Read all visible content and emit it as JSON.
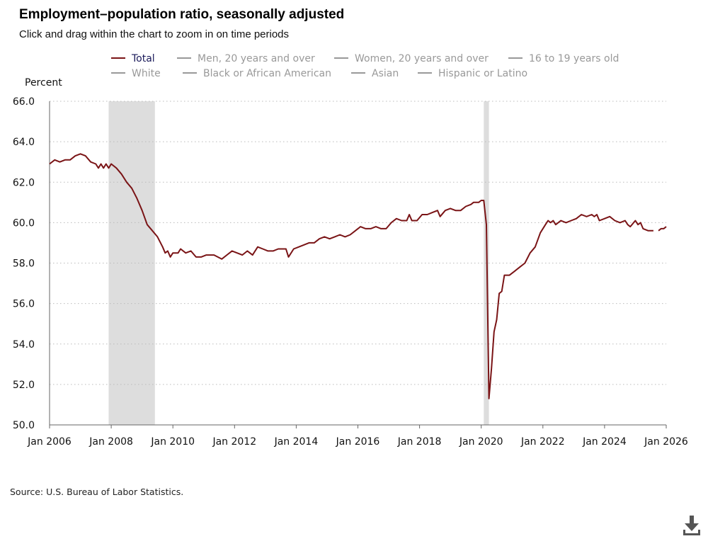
{
  "header": {
    "title": "Employment–population ratio, seasonally adjusted",
    "subtitle": "Click and drag within the chart to zoom in on time periods"
  },
  "footer": {
    "source": "Source: U.S. Bureau of Labor Statistics."
  },
  "toolbar": {
    "download_icon": "download-icon"
  },
  "colors": {
    "series_total": "#7a1416",
    "legend_inactive": "#999999",
    "legend_active_text": "#1a1a5a",
    "recession_shade": "#dddddd",
    "grid": "#bbbbbb"
  },
  "chart_data": {
    "type": "line",
    "title": "Employment–population ratio, seasonally adjusted",
    "ylabel": "Percent",
    "xlabel": "",
    "ylim": [
      50,
      66
    ],
    "xlim": [
      "2006-01",
      "2026-01"
    ],
    "y_ticks": [
      "50.0",
      "52.0",
      "54.0",
      "56.0",
      "58.0",
      "60.0",
      "62.0",
      "64.0",
      "66.0"
    ],
    "x_ticks": [
      "Jan 2006",
      "Jan 2008",
      "Jan 2010",
      "Jan 2012",
      "Jan 2014",
      "Jan 2016",
      "Jan 2018",
      "Jan 2020",
      "Jan 2022",
      "Jan 2024",
      "Jan 2026"
    ],
    "grid": "horizontal-dotted",
    "legend_placement": "top",
    "legend": [
      {
        "name": "Total",
        "active": true
      },
      {
        "name": "Men, 20 years and over",
        "active": false
      },
      {
        "name": "Women, 20 years and over",
        "active": false
      },
      {
        "name": "16 to 19 years old",
        "active": false
      },
      {
        "name": "White",
        "active": false
      },
      {
        "name": "Black or African American",
        "active": false
      },
      {
        "name": "Asian",
        "active": false
      },
      {
        "name": "Hispanic or Latino",
        "active": false
      }
    ],
    "recessions": [
      {
        "start": "2007-12",
        "end": "2009-06"
      },
      {
        "start": "2020-02",
        "end": "2020-04"
      }
    ],
    "series": [
      {
        "name": "Total",
        "points": [
          [
            "2006-01",
            62.9
          ],
          [
            "2006-03",
            63.1
          ],
          [
            "2006-05",
            63.0
          ],
          [
            "2006-07",
            63.1
          ],
          [
            "2006-09",
            63.1
          ],
          [
            "2006-11",
            63.3
          ],
          [
            "2007-01",
            63.4
          ],
          [
            "2007-03",
            63.3
          ],
          [
            "2007-05",
            63.0
          ],
          [
            "2007-07",
            62.9
          ],
          [
            "2007-08",
            62.7
          ],
          [
            "2007-09",
            62.9
          ],
          [
            "2007-10",
            62.7
          ],
          [
            "2007-11",
            62.9
          ],
          [
            "2007-12",
            62.7
          ],
          [
            "2008-01",
            62.9
          ],
          [
            "2008-03",
            62.7
          ],
          [
            "2008-05",
            62.4
          ],
          [
            "2008-07",
            62.0
          ],
          [
            "2008-09",
            61.7
          ],
          [
            "2008-11",
            61.2
          ],
          [
            "2009-01",
            60.6
          ],
          [
            "2009-03",
            59.9
          ],
          [
            "2009-05",
            59.6
          ],
          [
            "2009-07",
            59.3
          ],
          [
            "2009-09",
            58.8
          ],
          [
            "2009-10",
            58.5
          ],
          [
            "2009-11",
            58.6
          ],
          [
            "2009-12",
            58.3
          ],
          [
            "2010-01",
            58.5
          ],
          [
            "2010-03",
            58.5
          ],
          [
            "2010-04",
            58.7
          ],
          [
            "2010-06",
            58.5
          ],
          [
            "2010-08",
            58.6
          ],
          [
            "2010-10",
            58.3
          ],
          [
            "2010-12",
            58.3
          ],
          [
            "2011-02",
            58.4
          ],
          [
            "2011-05",
            58.4
          ],
          [
            "2011-08",
            58.2
          ],
          [
            "2011-10",
            58.4
          ],
          [
            "2011-12",
            58.6
          ],
          [
            "2012-02",
            58.5
          ],
          [
            "2012-04",
            58.4
          ],
          [
            "2012-06",
            58.6
          ],
          [
            "2012-08",
            58.4
          ],
          [
            "2012-10",
            58.8
          ],
          [
            "2012-12",
            58.7
          ],
          [
            "2013-02",
            58.6
          ],
          [
            "2013-04",
            58.6
          ],
          [
            "2013-06",
            58.7
          ],
          [
            "2013-09",
            58.7
          ],
          [
            "2013-10",
            58.3
          ],
          [
            "2013-12",
            58.7
          ],
          [
            "2014-02",
            58.8
          ],
          [
            "2014-04",
            58.9
          ],
          [
            "2014-06",
            59.0
          ],
          [
            "2014-08",
            59.0
          ],
          [
            "2014-10",
            59.2
          ],
          [
            "2014-12",
            59.3
          ],
          [
            "2015-02",
            59.2
          ],
          [
            "2015-04",
            59.3
          ],
          [
            "2015-06",
            59.4
          ],
          [
            "2015-08",
            59.3
          ],
          [
            "2015-10",
            59.4
          ],
          [
            "2015-12",
            59.6
          ],
          [
            "2016-02",
            59.8
          ],
          [
            "2016-04",
            59.7
          ],
          [
            "2016-06",
            59.7
          ],
          [
            "2016-08",
            59.8
          ],
          [
            "2016-10",
            59.7
          ],
          [
            "2016-12",
            59.7
          ],
          [
            "2017-02",
            60.0
          ],
          [
            "2017-04",
            60.2
          ],
          [
            "2017-06",
            60.1
          ],
          [
            "2017-08",
            60.1
          ],
          [
            "2017-09",
            60.4
          ],
          [
            "2017-10",
            60.1
          ],
          [
            "2017-12",
            60.1
          ],
          [
            "2018-02",
            60.4
          ],
          [
            "2018-04",
            60.4
          ],
          [
            "2018-06",
            60.5
          ],
          [
            "2018-08",
            60.6
          ],
          [
            "2018-09",
            60.3
          ],
          [
            "2018-11",
            60.6
          ],
          [
            "2019-01",
            60.7
          ],
          [
            "2019-03",
            60.6
          ],
          [
            "2019-05",
            60.6
          ],
          [
            "2019-07",
            60.8
          ],
          [
            "2019-09",
            60.9
          ],
          [
            "2019-10",
            61.0
          ],
          [
            "2019-12",
            61.0
          ],
          [
            "2020-01",
            61.1
          ],
          [
            "2020-02",
            61.1
          ],
          [
            "2020-03",
            59.9
          ],
          [
            "2020-04",
            51.3
          ],
          [
            "2020-05",
            52.8
          ],
          [
            "2020-06",
            54.6
          ],
          [
            "2020-07",
            55.2
          ],
          [
            "2020-08",
            56.5
          ],
          [
            "2020-09",
            56.6
          ],
          [
            "2020-10",
            57.4
          ],
          [
            "2020-12",
            57.4
          ],
          [
            "2021-02",
            57.6
          ],
          [
            "2021-04",
            57.8
          ],
          [
            "2021-06",
            58.0
          ],
          [
            "2021-08",
            58.5
          ],
          [
            "2021-10",
            58.8
          ],
          [
            "2021-12",
            59.5
          ],
          [
            "2022-02",
            59.9
          ],
          [
            "2022-03",
            60.1
          ],
          [
            "2022-04",
            60.0
          ],
          [
            "2022-05",
            60.1
          ],
          [
            "2022-06",
            59.9
          ],
          [
            "2022-08",
            60.1
          ],
          [
            "2022-10",
            60.0
          ],
          [
            "2022-12",
            60.1
          ],
          [
            "2023-02",
            60.2
          ],
          [
            "2023-04",
            60.4
          ],
          [
            "2023-06",
            60.3
          ],
          [
            "2023-08",
            60.4
          ],
          [
            "2023-09",
            60.3
          ],
          [
            "2023-10",
            60.4
          ],
          [
            "2023-11",
            60.1
          ],
          [
            "2024-01",
            60.2
          ],
          [
            "2024-03",
            60.3
          ],
          [
            "2024-05",
            60.1
          ],
          [
            "2024-07",
            60.0
          ],
          [
            "2024-09",
            60.1
          ],
          [
            "2024-10",
            59.9
          ],
          [
            "2024-11",
            59.8
          ],
          [
            "2025-01",
            60.1
          ],
          [
            "2025-02",
            59.9
          ],
          [
            "2025-03",
            60.0
          ],
          [
            "2025-04",
            59.7
          ],
          [
            "2025-06",
            59.6
          ],
          [
            "2025-08",
            59.6
          ],
          null,
          [
            "2025-10",
            59.6
          ],
          [
            "2025-11",
            59.7
          ],
          [
            "2025-12",
            59.7
          ],
          [
            "2026-01",
            59.8
          ]
        ]
      }
    ]
  }
}
